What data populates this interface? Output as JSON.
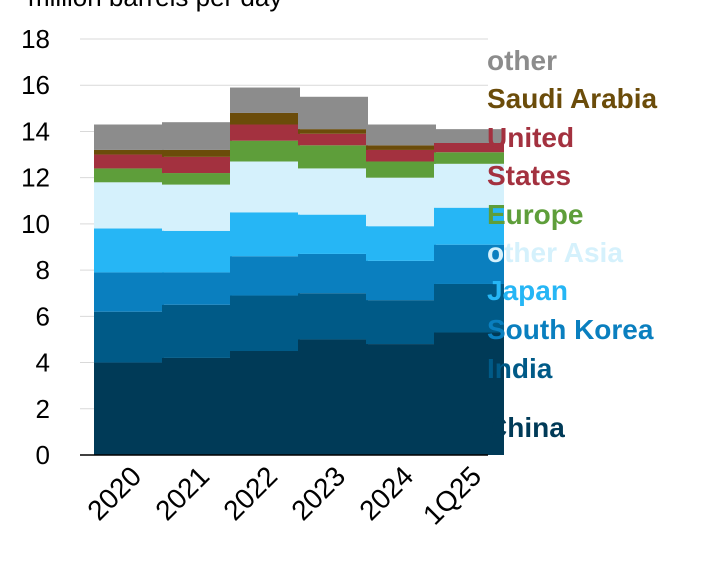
{
  "chart_data": {
    "type": "bar",
    "stacked": true,
    "ylabel": "million barrels per day",
    "ylim": [
      0,
      18
    ],
    "yticks": [
      0,
      2,
      4,
      6,
      8,
      10,
      12,
      14,
      16,
      18
    ],
    "grid": true,
    "legend_placement": "right",
    "categories": [
      "2020",
      "2021",
      "2022",
      "2023",
      "2024",
      "1Q25"
    ],
    "series": [
      {
        "name": "China",
        "color": "#003a57",
        "values": [
          4.0,
          4.2,
          4.5,
          5.0,
          4.8,
          5.3
        ]
      },
      {
        "name": "India",
        "color": "#005a87",
        "values": [
          2.2,
          2.3,
          2.4,
          2.0,
          1.9,
          2.1
        ]
      },
      {
        "name": "South Korea",
        "color": "#0a7fbf",
        "values": [
          1.7,
          1.4,
          1.7,
          1.7,
          1.7,
          1.7
        ]
      },
      {
        "name": "Japan",
        "color": "#26b6f5",
        "values": [
          1.9,
          1.8,
          1.9,
          1.7,
          1.5,
          1.6
        ]
      },
      {
        "name": "other Asia",
        "color": "#d5f1fc",
        "values": [
          2.0,
          2.0,
          2.2,
          2.0,
          2.1,
          1.9
        ]
      },
      {
        "name": "Europe",
        "color": "#5e9e3a",
        "values": [
          0.6,
          0.5,
          0.9,
          1.0,
          0.7,
          0.5
        ]
      },
      {
        "name": "United States",
        "color": "#a3313f",
        "values": [
          0.6,
          0.7,
          0.7,
          0.5,
          0.5,
          0.4
        ]
      },
      {
        "name": "Saudi Arabia",
        "color": "#6b4c0a",
        "values": [
          0.2,
          0.3,
          0.5,
          0.2,
          0.2,
          0.0
        ]
      },
      {
        "name": "other",
        "color": "#8c8c8c",
        "values": [
          1.1,
          1.2,
          1.1,
          1.4,
          0.9,
          0.6
        ]
      }
    ]
  }
}
